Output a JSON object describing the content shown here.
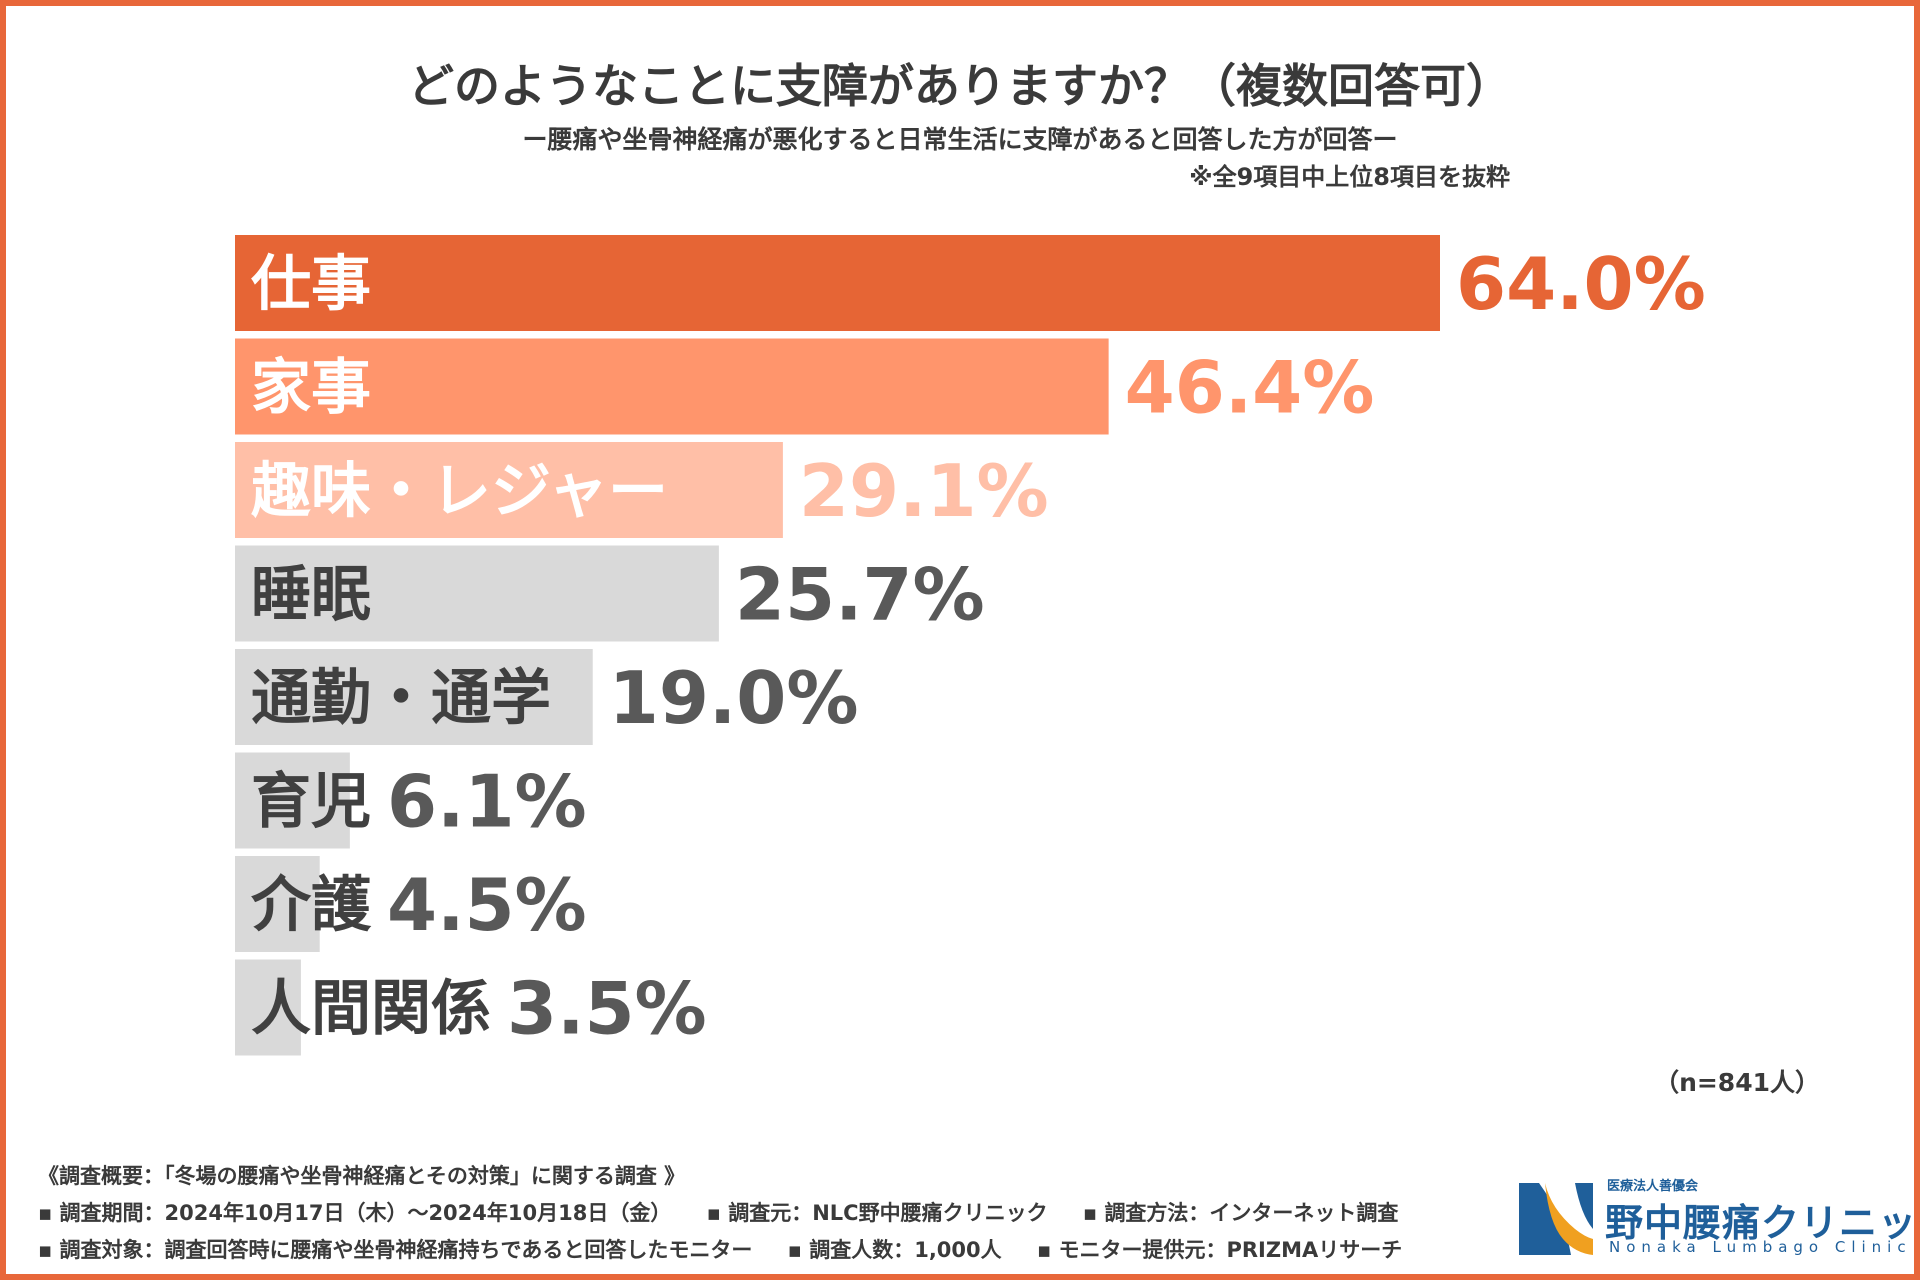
{
  "title": "どのようなことに支障がありますか？（複数回答可）",
  "subtitle": "ー腰痛や坐骨神経痛が悪化すると日常生活に支障があると回答した方が回答ー",
  "note": "※全9項目中上位8項目を抜粋",
  "sample_size": "（n=841人）",
  "chart_data": {
    "type": "bar",
    "orientation": "horizontal",
    "title": "どのようなことに支障がありますか？（複数回答可）",
    "unit": "%",
    "xlim": [
      0,
      100
    ],
    "categories": [
      "仕事",
      "家事",
      "趣味・レジャー",
      "睡眠",
      "通勤・通学",
      "育児",
      "介護",
      "人間関係"
    ],
    "values": [
      64.0,
      46.4,
      29.1,
      25.7,
      19.0,
      6.1,
      4.5,
      3.5
    ],
    "value_labels": [
      "64.0%",
      "46.4%",
      "29.1%",
      "25.7%",
      "19.0%",
      "6.1%",
      "4.5%",
      "3.5%"
    ],
    "bar_colors": [
      "#e66535",
      "#ff956c",
      "#ffbfa7",
      "#d9d9d9",
      "#d9d9d9",
      "#d9d9d9",
      "#d9d9d9",
      "#d9d9d9"
    ],
    "value_colors": [
      "#e66535",
      "#ff956c",
      "#ffbfa7",
      "#595959",
      "#595959",
      "#595959",
      "#595959",
      "#595959"
    ],
    "category_colors": [
      "#ffffff",
      "#ffffff",
      "#ffffff",
      "#404040",
      "#404040",
      "#404040",
      "#404040",
      "#404040"
    ]
  },
  "footer": {
    "heading": "《調査概要：「冬場の腰痛や坐骨神経痛とその対策」に関する調査 》",
    "period": "調査期間：2024年10月17日（木）～2024年10月18日（金）",
    "source": "調査元：NLC野中腰痛クリニック",
    "method": "調査方法：インターネット調査",
    "target": "調査対象：調査回答時に腰痛や坐骨神経痛持ちであると回答したモニター",
    "respondents": "調査人数：1,000人",
    "provider": "モニター提供元：PRIZMAリサーチ"
  },
  "logo": {
    "corp": "医療法人善優会",
    "name": "野中腰痛クリニック",
    "en": "Nonaka Lumbago Clinic"
  },
  "colors": {
    "frame": "#e8673a",
    "brand_blue": "#1f5f9a",
    "brand_orange": "#f0a020"
  }
}
